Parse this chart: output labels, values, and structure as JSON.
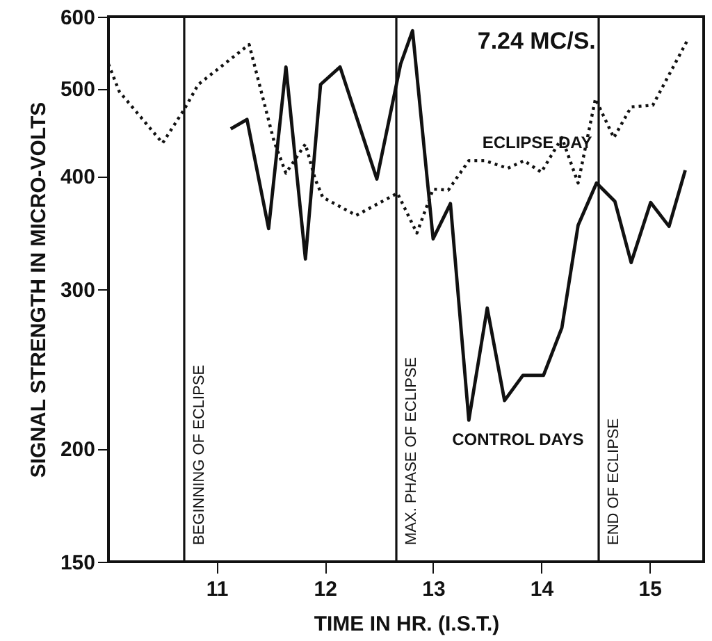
{
  "chart_data": {
    "type": "line",
    "annotations": [
      "7.24 MC/S."
    ],
    "xlabel": "TIME  IN HR. (I.S.T.)",
    "ylabel": "SIGNAL STRENGTH IN MICRO-VOLTS",
    "log": "y",
    "xlim": [
      10,
      15.5
    ],
    "xticks": [
      11,
      12,
      13,
      14,
      15
    ],
    "ylim": [
      150,
      600
    ],
    "yticks": [
      150,
      200,
      300,
      400,
      500,
      600
    ],
    "grid": false,
    "marker": "none",
    "series": [
      {
        "name": "ECLIPSE DAY",
        "color": "#111111",
        "line_style": "dotted",
        "x": [
          10.0,
          10.1,
          10.5,
          10.7,
          10.83,
          11.3,
          11.53,
          11.64,
          11.82,
          11.91,
          11.98,
          12.29,
          12.67,
          12.85,
          13.0,
          13.14,
          13.33,
          13.48,
          13.69,
          13.84,
          14.0,
          14.19,
          14.34,
          14.5,
          14.67,
          14.83,
          15.03,
          15.35
        ],
        "values": [
          532,
          496,
          435,
          474,
          505,
          559,
          437,
          403,
          434,
          397,
          379,
          362,
          383,
          346,
          387,
          386,
          416,
          416,
          408,
          416,
          404,
          441,
          393,
          487,
          441,
          477,
          479,
          565
        ]
      },
      {
        "name": "CONTROL DAYS",
        "color": "#111111",
        "line_style": "solid",
        "x": [
          11.13,
          11.28,
          11.48,
          11.64,
          11.82,
          11.96,
          12.14,
          12.48,
          12.7,
          12.81,
          13.0,
          13.16,
          13.33,
          13.5,
          13.66,
          13.83,
          14.02,
          14.19,
          14.34,
          14.51,
          14.68,
          14.83,
          15.01,
          15.18,
          15.33
        ],
        "values": [
          451,
          462,
          350,
          528,
          324,
          505,
          528,
          397,
          532,
          579,
          341,
          373,
          215,
          286,
          226,
          241,
          241,
          272,
          353,
          393,
          375,
          321,
          374,
          352,
          406
        ]
      }
    ],
    "ref_lines": [
      {
        "axis": "x",
        "value": 10.7,
        "label": "BEGINNING OF ECLIPSE"
      },
      {
        "axis": "x",
        "value": 12.66,
        "label": "MAX. PHASE OF ECLIPSE"
      },
      {
        "axis": "x",
        "value": 14.53,
        "label": "END OF ECLIPSE"
      }
    ]
  }
}
